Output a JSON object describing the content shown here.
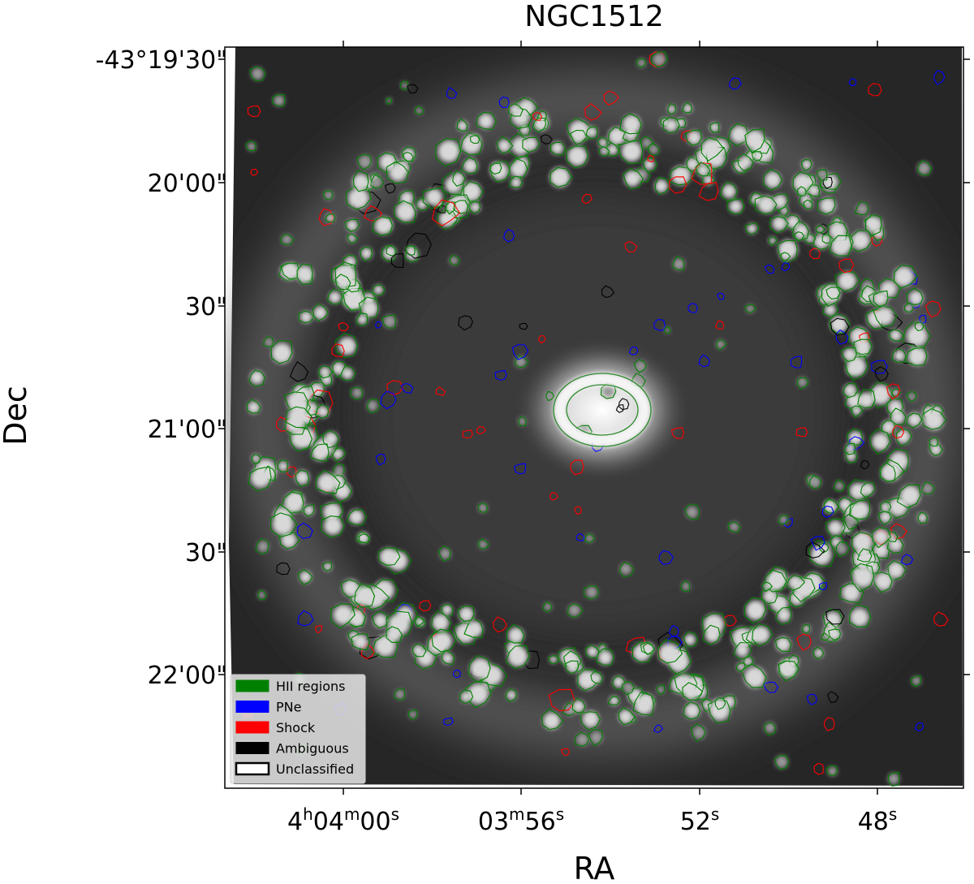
{
  "title": "NGC1512",
  "xlabel": "RA",
  "ylabel": "Dec",
  "xtick_labels": [
    [
      [
        "4",
        "h"
      ],
      [
        "04",
        "m"
      ],
      [
        "00",
        "s"
      ]
    ],
    [
      [
        "03",
        "m"
      ],
      [
        "56",
        "s"
      ]
    ],
    [
      [
        "52",
        "s"
      ]
    ],
    [
      [
        "48",
        "s"
      ]
    ]
  ],
  "ytick_labels": [
    "-43°19'30\"",
    "20'00\"",
    "30\"",
    "21'00\"",
    "30\"",
    "22'00\""
  ],
  "legend": [
    {
      "name": "HII regions",
      "color": "#008000"
    },
    {
      "name": "PNe",
      "color": "#0000ff"
    },
    {
      "name": "Shock",
      "color": "#ff0000"
    },
    {
      "name": "Ambiguous",
      "color": "#000000"
    },
    {
      "name": "Unclassified",
      "color": "#ffffff"
    }
  ]
}
